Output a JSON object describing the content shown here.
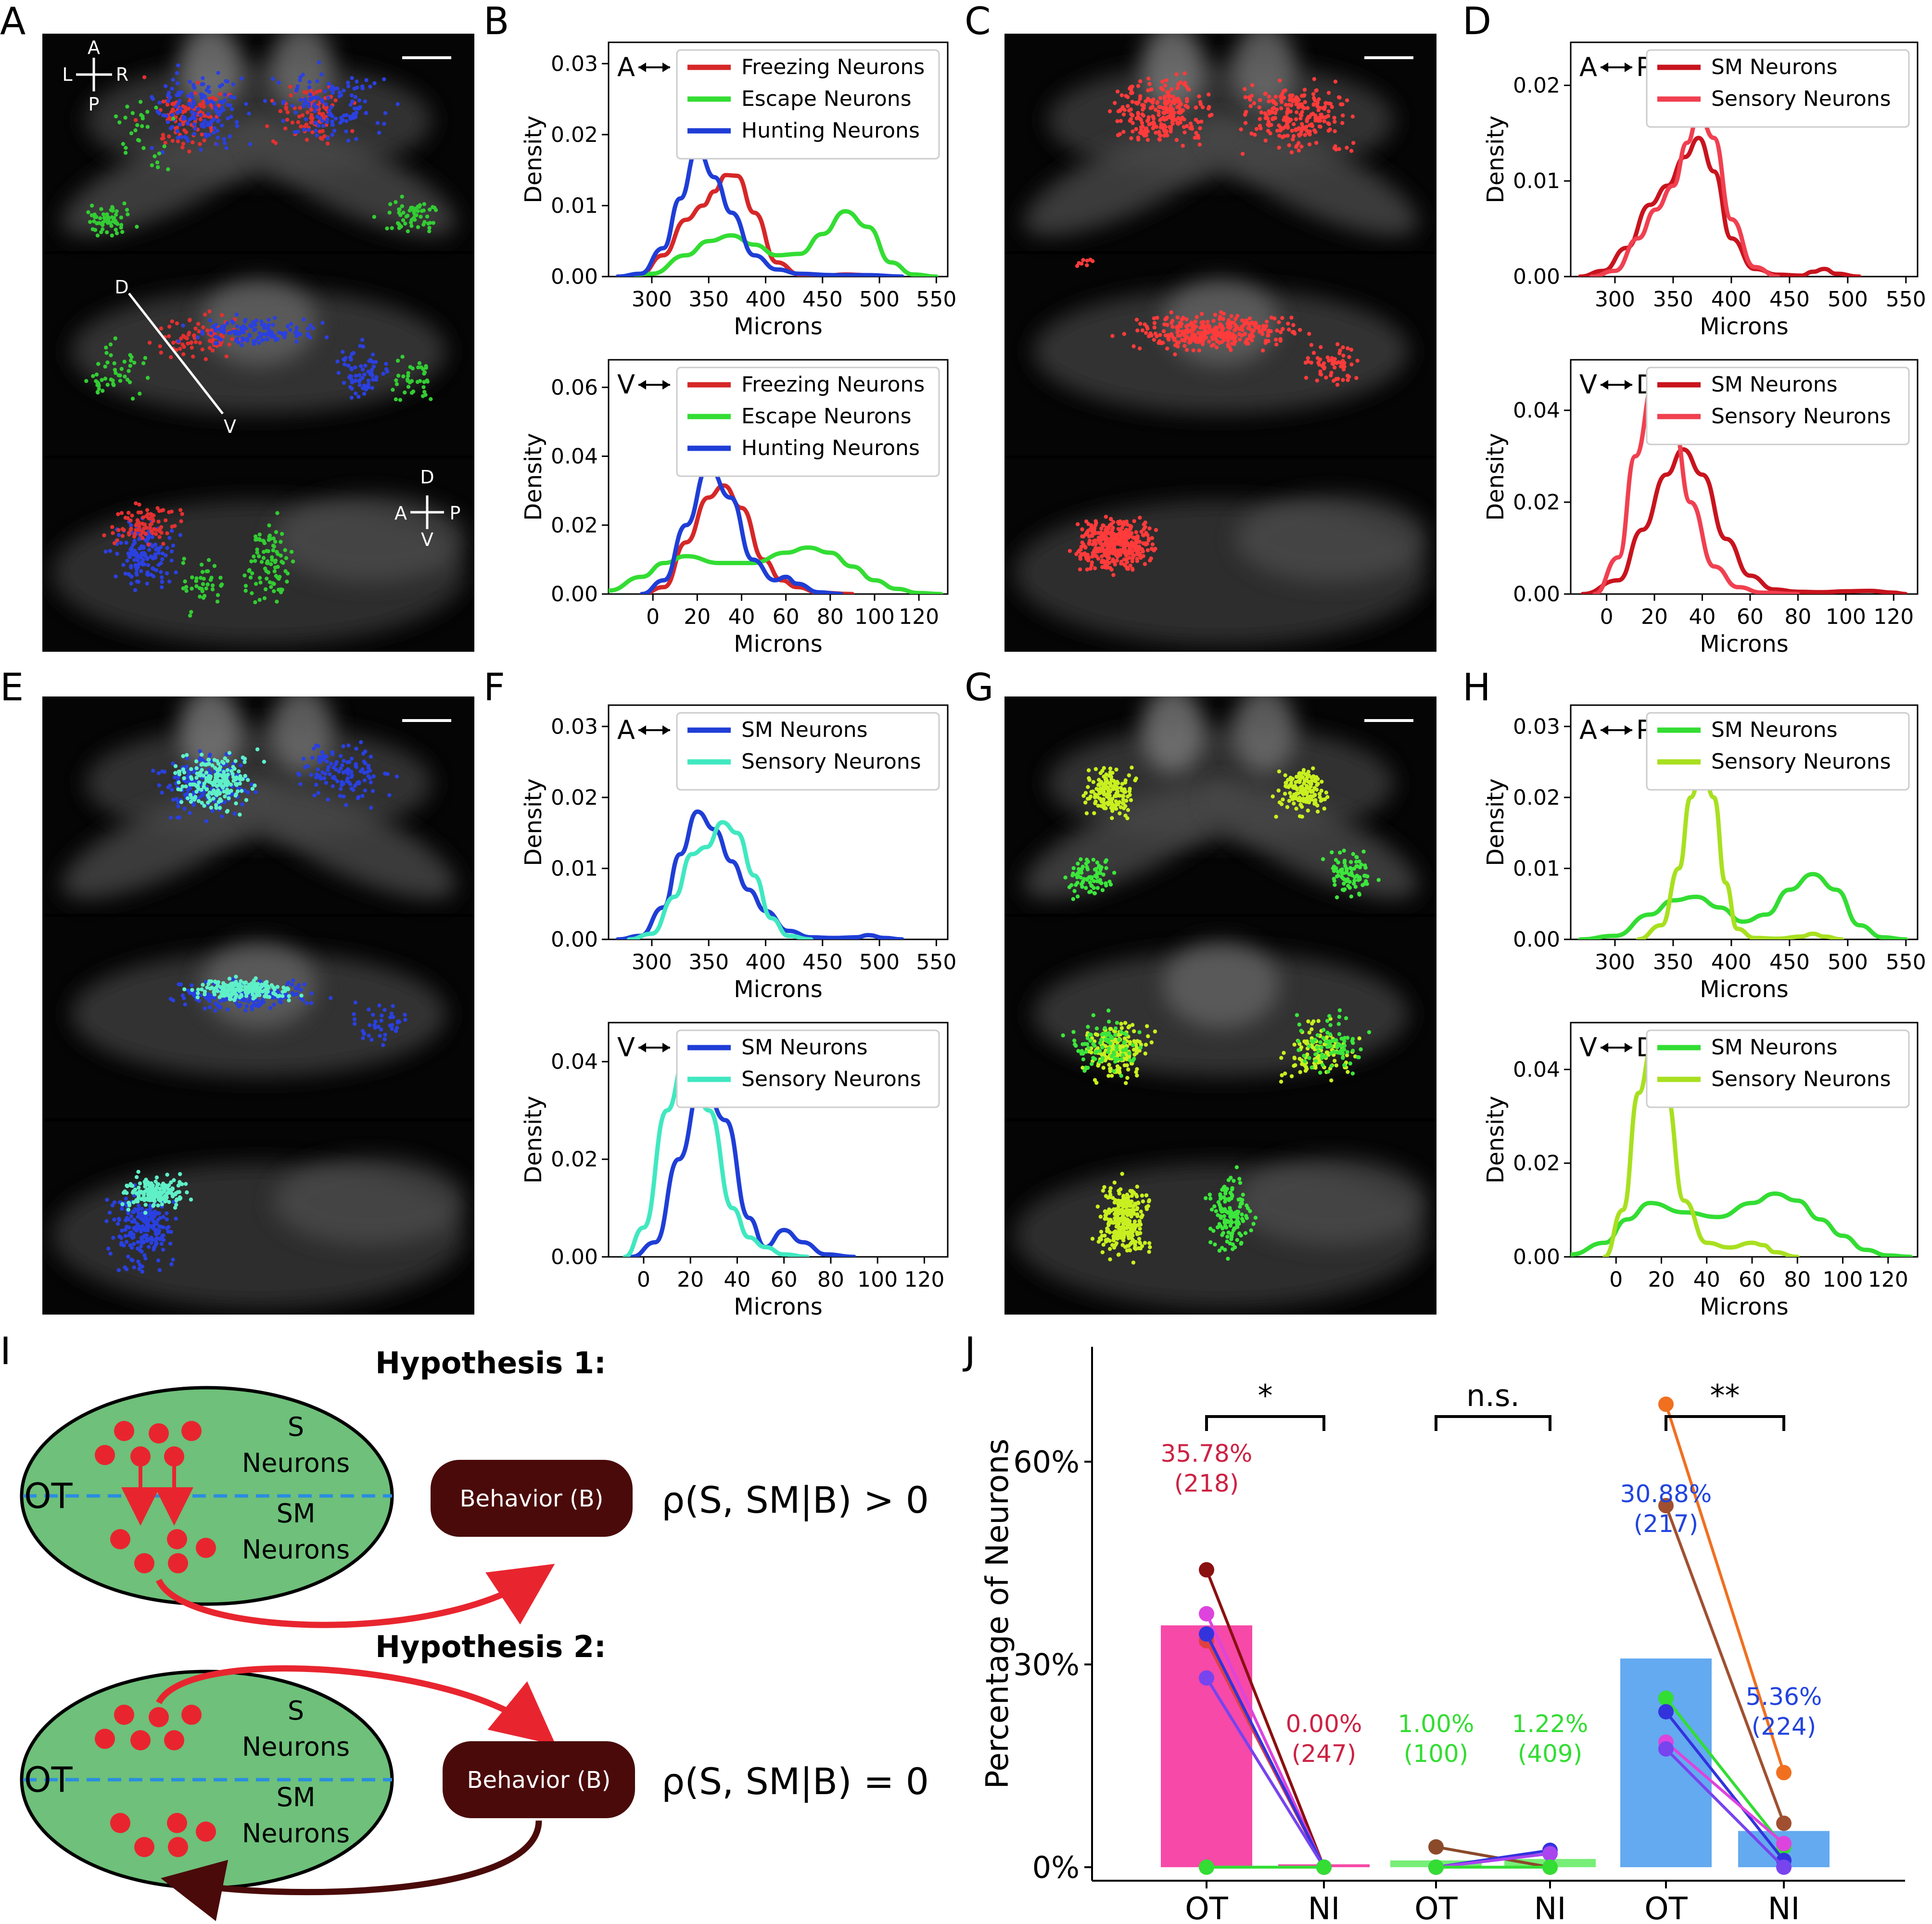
{
  "panel_labels": [
    "A",
    "B",
    "C",
    "D",
    "E",
    "F",
    "G",
    "H",
    "I",
    "J"
  ],
  "images": {
    "A": {
      "compass_top": {
        "a": "A",
        "l": "L",
        "r": "R",
        "p": "P"
      },
      "arrow": {
        "d": "D",
        "v": "V"
      },
      "compass_side": {
        "d": "D",
        "a": "A",
        "p": "P",
        "v": "V"
      },
      "neuron_colors": [
        "#e33030",
        "#2b40e0",
        "#33cc33"
      ]
    },
    "C": {
      "neuron_colors": [
        "#ff3b3b"
      ]
    },
    "E": {
      "neuron_colors": [
        "#2940e0",
        "#5ff0c8"
      ]
    },
    "G": {
      "neuron_colors": [
        "#3ce63c",
        "#c8f020"
      ]
    }
  },
  "common": {
    "xlabel": "Microns",
    "ylabel": "Density",
    "ap": {
      "a": "A",
      "p": "P"
    },
    "vd": {
      "v": "V",
      "d": "D"
    }
  },
  "chart_data": [
    {
      "id": "B-top",
      "type": "line",
      "axis": "ap",
      "xlim": [
        262,
        560
      ],
      "ylim": [
        0,
        0.033
      ],
      "xticks": [
        250,
        300,
        350,
        400,
        450,
        500,
        550
      ],
      "yticks": [
        0.0,
        0.01,
        0.02,
        0.03
      ],
      "ytick_labels": [
        "0.00",
        "0.01",
        "0.02",
        "0.03"
      ],
      "series": [
        {
          "name": "Freezing Neurons",
          "color": "#d62728",
          "x": [
            270,
            290,
            310,
            330,
            345,
            355,
            365,
            375,
            390,
            410,
            430,
            450,
            470,
            490,
            510
          ],
          "y": [
            0,
            0.0003,
            0.003,
            0.008,
            0.01,
            0.012,
            0.0143,
            0.0142,
            0.009,
            0.002,
            0.0003,
            0.0001,
            0.0003,
            0.0002,
            0
          ]
        },
        {
          "name": "Escape Neurons",
          "color": "#33dd33",
          "x": [
            270,
            300,
            330,
            350,
            370,
            390,
            410,
            430,
            450,
            470,
            490,
            510,
            530,
            550
          ],
          "y": [
            0,
            0.0004,
            0.003,
            0.005,
            0.0058,
            0.0045,
            0.003,
            0.0032,
            0.006,
            0.0092,
            0.007,
            0.002,
            0.0003,
            0
          ]
        },
        {
          "name": "Hunting Neurons",
          "color": "#1f3ed6",
          "x": [
            270,
            290,
            310,
            325,
            340,
            355,
            370,
            390,
            410,
            430,
            460,
            490,
            520
          ],
          "y": [
            0,
            0.0004,
            0.004,
            0.011,
            0.018,
            0.014,
            0.009,
            0.003,
            0.001,
            0.0004,
            0.0002,
            0.0002,
            0
          ]
        }
      ]
    },
    {
      "id": "B-bottom",
      "type": "line",
      "axis": "vd",
      "xlim": [
        -20,
        133
      ],
      "ylim": [
        0,
        0.068
      ],
      "xticks": [
        0,
        20,
        40,
        60,
        80,
        100,
        120
      ],
      "yticks": [
        0.0,
        0.02,
        0.04,
        0.06
      ],
      "ytick_labels": [
        "0.00",
        "0.02",
        "0.04",
        "0.06"
      ],
      "series": [
        {
          "name": "Freezing Neurons",
          "color": "#d62728",
          "x": [
            -5,
            5,
            15,
            25,
            32,
            40,
            50,
            58,
            65,
            75,
            90
          ],
          "y": [
            0,
            0.002,
            0.015,
            0.028,
            0.0315,
            0.025,
            0.01,
            0.004,
            0.002,
            0.0004,
            0
          ]
        },
        {
          "name": "Escape Neurons",
          "color": "#33dd33",
          "x": [
            -20,
            -5,
            5,
            15,
            30,
            45,
            60,
            70,
            80,
            90,
            100,
            110,
            120,
            130
          ],
          "y": [
            0.001,
            0.005,
            0.009,
            0.011,
            0.009,
            0.009,
            0.012,
            0.0135,
            0.012,
            0.008,
            0.004,
            0.0015,
            0.0003,
            0
          ]
        },
        {
          "name": "Hunting Neurons",
          "color": "#1f3ed6",
          "x": [
            -5,
            5,
            15,
            25,
            35,
            45,
            55,
            60,
            65,
            75,
            85
          ],
          "y": [
            0,
            0.004,
            0.02,
            0.037,
            0.028,
            0.01,
            0.004,
            0.005,
            0.003,
            0.0005,
            0
          ]
        }
      ]
    },
    {
      "id": "D-top",
      "type": "line",
      "axis": "ap",
      "xlim": [
        262,
        560
      ],
      "ylim": [
        0,
        0.0245
      ],
      "xticks": [
        250,
        300,
        350,
        400,
        450,
        500,
        550
      ],
      "yticks": [
        0.0,
        0.01,
        0.02
      ],
      "ytick_labels": [
        "0.00",
        "0.01",
        "0.02"
      ],
      "series": [
        {
          "name": "SM Neurons",
          "color": "#c8141e",
          "x": [
            270,
            290,
            310,
            330,
            345,
            360,
            372,
            385,
            400,
            420,
            440,
            460,
            470,
            480,
            490,
            510
          ],
          "y": [
            0,
            0.0006,
            0.003,
            0.0075,
            0.0095,
            0.0125,
            0.0145,
            0.011,
            0.004,
            0.0008,
            0.0002,
            0.0001,
            0.0005,
            0.0008,
            0.0003,
            0
          ]
        },
        {
          "name": "Sensory Neurons",
          "color": "#f04050",
          "x": [
            280,
            300,
            320,
            335,
            350,
            362,
            372,
            385,
            400,
            420,
            440
          ],
          "y": [
            0,
            0.0006,
            0.004,
            0.007,
            0.0095,
            0.014,
            0.017,
            0.0145,
            0.006,
            0.001,
            0
          ]
        }
      ]
    },
    {
      "id": "D-bottom",
      "type": "line",
      "axis": "vd",
      "xlim": [
        -15,
        130
      ],
      "ylim": [
        0,
        0.051
      ],
      "xticks": [
        0,
        20,
        40,
        60,
        80,
        100,
        120
      ],
      "yticks": [
        0.0,
        0.02,
        0.04
      ],
      "ytick_labels": [
        "0.00",
        "0.02",
        "0.04"
      ],
      "series": [
        {
          "name": "SM Neurons",
          "color": "#c8141e",
          "x": [
            -10,
            5,
            15,
            25,
            32,
            40,
            50,
            60,
            70,
            80,
            90,
            100,
            110,
            120,
            125
          ],
          "y": [
            0,
            0.003,
            0.014,
            0.026,
            0.0315,
            0.026,
            0.012,
            0.004,
            0.001,
            0.0005,
            0.0004,
            0.0006,
            0.0007,
            0.0003,
            0
          ]
        },
        {
          "name": "Sensory Neurons",
          "color": "#f04050",
          "x": [
            -5,
            5,
            12,
            20,
            28,
            35,
            45,
            55,
            65,
            80
          ],
          "y": [
            0,
            0.008,
            0.03,
            0.0465,
            0.037,
            0.02,
            0.006,
            0.0015,
            0.0003,
            0
          ]
        }
      ]
    },
    {
      "id": "F-top",
      "type": "line",
      "axis": "ap",
      "xlim": [
        262,
        560
      ],
      "ylim": [
        0,
        0.033
      ],
      "xticks": [
        250,
        300,
        350,
        400,
        450,
        500,
        550
      ],
      "yticks": [
        0.0,
        0.01,
        0.02,
        0.03
      ],
      "ytick_labels": [
        "0.00",
        "0.01",
        "0.02",
        "0.03"
      ],
      "series": [
        {
          "name": "SM Neurons",
          "color": "#1f3ed6",
          "x": [
            270,
            290,
            310,
            325,
            340,
            355,
            370,
            385,
            400,
            420,
            440,
            460,
            480,
            490,
            505,
            520
          ],
          "y": [
            0,
            0.0005,
            0.0045,
            0.012,
            0.018,
            0.0155,
            0.011,
            0.007,
            0.004,
            0.0012,
            0.0003,
            0.0002,
            0.0003,
            0.0006,
            0.0002,
            0
          ]
        },
        {
          "name": "Sensory Neurons",
          "color": "#40e8c0",
          "x": [
            280,
            300,
            320,
            335,
            348,
            362,
            375,
            390,
            405,
            420,
            440
          ],
          "y": [
            0,
            0.0008,
            0.006,
            0.012,
            0.013,
            0.0165,
            0.015,
            0.009,
            0.003,
            0.0005,
            0
          ]
        }
      ]
    },
    {
      "id": "F-bottom",
      "type": "line",
      "axis": "vd",
      "xlim": [
        -15,
        130
      ],
      "ylim": [
        0,
        0.048
      ],
      "xticks": [
        0,
        20,
        40,
        60,
        80,
        100,
        120
      ],
      "yticks": [
        0.0,
        0.02,
        0.04
      ],
      "ytick_labels": [
        "0.00",
        "0.02",
        "0.04"
      ],
      "series": [
        {
          "name": "SM Neurons",
          "color": "#1f3ed6",
          "x": [
            -5,
            5,
            15,
            25,
            35,
            45,
            52,
            60,
            68,
            78,
            90
          ],
          "y": [
            0,
            0.003,
            0.02,
            0.036,
            0.028,
            0.008,
            0.002,
            0.0055,
            0.003,
            0.0005,
            0
          ]
        },
        {
          "name": "Sensory Neurons",
          "color": "#40e8c0",
          "x": [
            -8,
            0,
            10,
            18,
            28,
            38,
            45,
            52,
            60,
            70
          ],
          "y": [
            0,
            0.006,
            0.03,
            0.041,
            0.03,
            0.01,
            0.004,
            0.002,
            0.0005,
            0
          ]
        }
      ]
    },
    {
      "id": "H-top",
      "type": "line",
      "axis": "ap",
      "xlim": [
        262,
        560
      ],
      "ylim": [
        0,
        0.033
      ],
      "xticks": [
        250,
        300,
        350,
        400,
        450,
        500,
        550
      ],
      "yticks": [
        0.0,
        0.01,
        0.02,
        0.03
      ],
      "ytick_labels": [
        "0.00",
        "0.01",
        "0.02",
        "0.03"
      ],
      "series": [
        {
          "name": "SM Neurons",
          "color": "#33dd33",
          "x": [
            270,
            300,
            330,
            350,
            370,
            390,
            410,
            430,
            450,
            470,
            490,
            510,
            530,
            550
          ],
          "y": [
            0,
            0.0005,
            0.0035,
            0.0055,
            0.006,
            0.0045,
            0.0025,
            0.0035,
            0.007,
            0.0092,
            0.007,
            0.002,
            0.0003,
            0
          ]
        },
        {
          "name": "Sensory Neurons",
          "color": "#a8e020",
          "x": [
            320,
            340,
            355,
            365,
            375,
            385,
            395,
            405,
            420,
            440,
            460,
            470,
            480,
            495
          ],
          "y": [
            0,
            0.002,
            0.01,
            0.02,
            0.0242,
            0.02,
            0.008,
            0.0015,
            0.0002,
            0.0001,
            0.0004,
            0.0008,
            0.0004,
            0
          ]
        }
      ]
    },
    {
      "id": "H-bottom",
      "type": "line",
      "axis": "vd",
      "xlim": [
        -20,
        133
      ],
      "ylim": [
        0,
        0.05
      ],
      "xticks": [
        0,
        20,
        40,
        60,
        80,
        100,
        120
      ],
      "yticks": [
        0.0,
        0.02,
        0.04
      ],
      "ytick_labels": [
        "0.00",
        "0.02",
        "0.04"
      ],
      "series": [
        {
          "name": "SM Neurons",
          "color": "#33dd33",
          "x": [
            -20,
            -5,
            5,
            15,
            30,
            45,
            60,
            70,
            80,
            90,
            100,
            110,
            120,
            130
          ],
          "y": [
            0.0005,
            0.003,
            0.008,
            0.0115,
            0.0095,
            0.0085,
            0.0115,
            0.0135,
            0.012,
            0.008,
            0.0045,
            0.0015,
            0.0003,
            0
          ]
        },
        {
          "name": "Sensory Neurons",
          "color": "#a8e020",
          "x": [
            -5,
            3,
            10,
            16,
            22,
            30,
            40,
            50,
            60,
            65,
            70,
            80
          ],
          "y": [
            0,
            0.01,
            0.035,
            0.045,
            0.035,
            0.012,
            0.003,
            0.002,
            0.003,
            0.0025,
            0.001,
            0
          ]
        }
      ]
    },
    {
      "id": "J",
      "type": "bar",
      "ylabel": "Percentage of Neurons",
      "categories": [
        "OT",
        "NI",
        "OT",
        "NI",
        "OT",
        "NI"
      ],
      "yticks": [
        0,
        30,
        60
      ],
      "ytick_labels": [
        "0%",
        "30%",
        "60%"
      ],
      "ylim": [
        -2,
        77
      ],
      "bars": [
        35.78,
        0.0,
        1.0,
        1.22,
        30.88,
        5.36
      ],
      "bar_colors": [
        "#f649a8",
        "#f649a8",
        "#77ee77",
        "#77ee77",
        "#63aaf0",
        "#63aaf0"
      ],
      "annotations": [
        {
          "text": "35.78%",
          "count": "(218)",
          "color": "#cc2244"
        },
        {
          "text": "0.00%",
          "count": "(247)",
          "color": "#cc2244"
        },
        {
          "text": "1.00%",
          "count": "(100)",
          "color": "#33dd33"
        },
        {
          "text": "1.22%",
          "count": "(409)",
          "color": "#33dd33"
        },
        {
          "text": "30.88%",
          "count": "(217)",
          "color": "#2244dd"
        },
        {
          "text": "5.36%",
          "count": "(224)",
          "color": "#2244dd"
        }
      ],
      "significance": [
        "*",
        "n.s.",
        "**"
      ],
      "lines": [
        {
          "group": 0,
          "color": "#8b1010",
          "values": [
            44,
            0
          ]
        },
        {
          "group": 0,
          "color": "#dd44dd",
          "values": [
            37.5,
            0
          ]
        },
        {
          "group": 0,
          "color": "#e04040",
          "values": [
            33.5,
            0
          ]
        },
        {
          "group": 0,
          "color": "#3333dd",
          "values": [
            34.5,
            0
          ]
        },
        {
          "group": 0,
          "color": "#7744ee",
          "values": [
            28,
            0
          ]
        },
        {
          "group": 0,
          "color": "#33dd33",
          "values": [
            0,
            0
          ]
        },
        {
          "group": 1,
          "color": "#8b4a2a",
          "values": [
            3,
            0
          ]
        },
        {
          "group": 1,
          "color": "#3333dd",
          "values": [
            0,
            2.5
          ]
        },
        {
          "group": 1,
          "color": "#aa44ee",
          "values": [
            0,
            2
          ]
        },
        {
          "group": 1,
          "color": "#33dd33",
          "values": [
            0,
            0
          ]
        },
        {
          "group": 2,
          "color": "#f07020",
          "values": [
            68.5,
            14
          ]
        },
        {
          "group": 2,
          "color": "#a05030",
          "values": [
            53.5,
            6.5
          ]
        },
        {
          "group": 2,
          "color": "#33dd33",
          "values": [
            25,
            3
          ]
        },
        {
          "group": 2,
          "color": "#3333dd",
          "values": [
            23,
            1
          ]
        },
        {
          "group": 2,
          "color": "#dd44dd",
          "values": [
            18.5,
            3.5
          ]
        },
        {
          "group": 2,
          "color": "#7744ee",
          "values": [
            17.5,
            0
          ]
        }
      ]
    }
  ],
  "hypothesis": {
    "h1_title": "Hypothesis 1:",
    "h2_title": "Hypothesis 2:",
    "ot": "OT",
    "s": "S",
    "neurons": "Neurons",
    "sm": "SM",
    "behavior": "Behavior (B)",
    "eq1": "ρ(S, SM|B) > 0",
    "eq2": "ρ(S, SM|B) = 0"
  }
}
